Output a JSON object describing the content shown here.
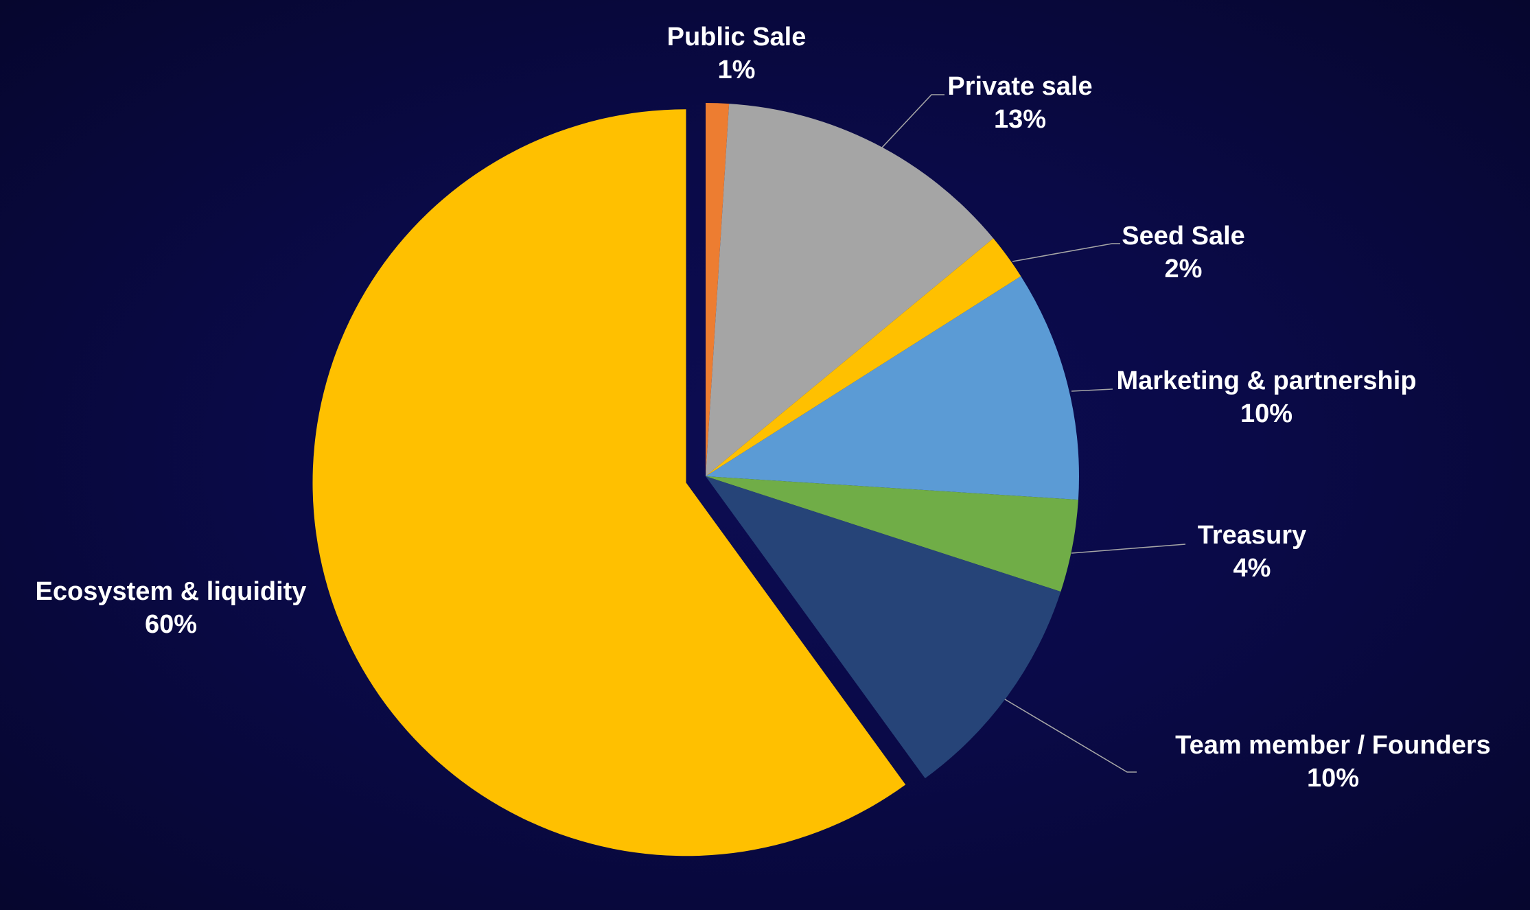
{
  "chart_data": {
    "type": "pie",
    "title": "",
    "start": "top, clockwise",
    "exploded": [
      "Ecosystem & liquidity"
    ],
    "slices": [
      {
        "label": "Public Sale",
        "value": 1,
        "value_label": "1%",
        "color": "#ED7D31"
      },
      {
        "label": "Private sale",
        "value": 13,
        "value_label": "13%",
        "color": "#A5A5A5"
      },
      {
        "label": "Seed Sale",
        "value": 2,
        "value_label": "2%",
        "color": "#FFC000"
      },
      {
        "label": "Marketing & partnership",
        "value": 10,
        "value_label": "10%",
        "color": "#5B9BD5"
      },
      {
        "label": "Treasury",
        "value": 4,
        "value_label": "4%",
        "color": "#70AD47"
      },
      {
        "label": "Team member / Founders",
        "value": 10,
        "value_label": "10%",
        "color": "#264478"
      },
      {
        "label": "Ecosystem & liquidity",
        "value": 60,
        "value_label": "60%",
        "color": "#FFC000"
      }
    ],
    "background": "#0A0A48",
    "legend": "none (data labels with leader lines)"
  }
}
